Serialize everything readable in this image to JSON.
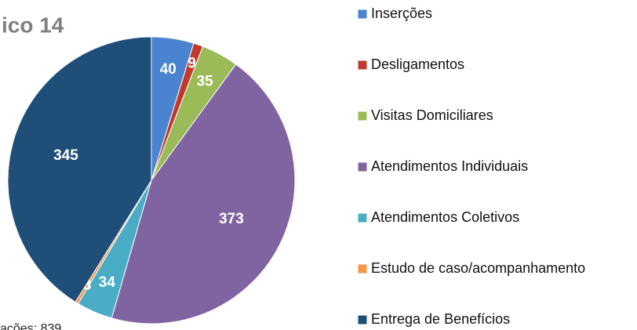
{
  "chart_data": {
    "type": "pie",
    "title": "ico 14",
    "note": "ações: 839",
    "categories": [
      "Inserções",
      "Desligamentos",
      "Visitas Domiciliares",
      "Atendimentos Individuais",
      "Atendimentos Coletivos",
      "Estudo de caso/acompanhamento",
      "Entrega de Benefícios"
    ],
    "values": [
      40,
      9,
      35,
      373,
      34,
      3,
      345
    ],
    "colors": [
      "#4a83d0",
      "#c0392b",
      "#9bbb59",
      "#8064a2",
      "#4bacc6",
      "#f79646",
      "#1f4e79"
    ]
  }
}
